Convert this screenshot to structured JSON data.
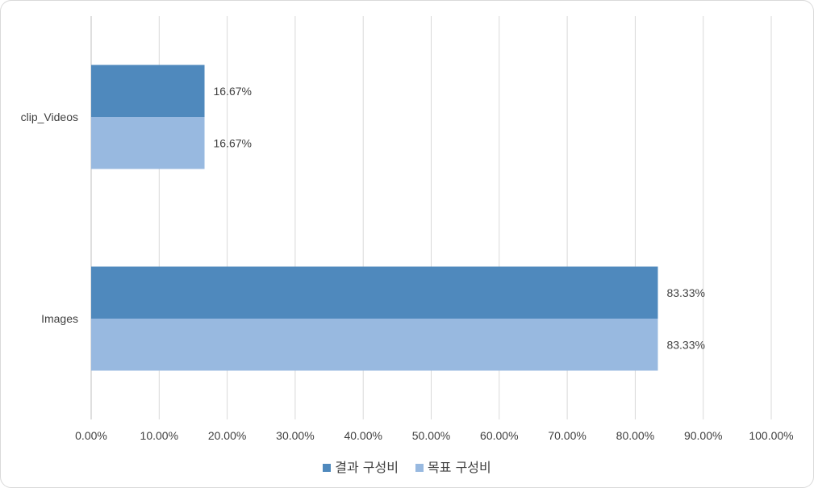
{
  "chart_data": {
    "type": "bar",
    "orientation": "horizontal",
    "categories": [
      "clip_Videos",
      "Images"
    ],
    "series": [
      {
        "name": "결과 구성비",
        "values": [
          16.67,
          83.33
        ],
        "color": "#4f89bd"
      },
      {
        "name": "목표 구성비",
        "values": [
          16.67,
          83.33
        ],
        "color": "#98b9e0"
      }
    ],
    "data_labels": [
      [
        "16.67%",
        "83.33%"
      ],
      [
        "16.67%",
        "83.33%"
      ]
    ],
    "xlim": [
      0,
      100
    ],
    "x_ticks": [
      0,
      10,
      20,
      30,
      40,
      50,
      60,
      70,
      80,
      90,
      100
    ],
    "x_tick_labels": [
      "0.00%",
      "10.00%",
      "20.00%",
      "30.00%",
      "40.00%",
      "50.00%",
      "60.00%",
      "70.00%",
      "80.00%",
      "90.00%",
      "100.00%"
    ],
    "grid": "vertical",
    "legend_position": "bottom"
  }
}
